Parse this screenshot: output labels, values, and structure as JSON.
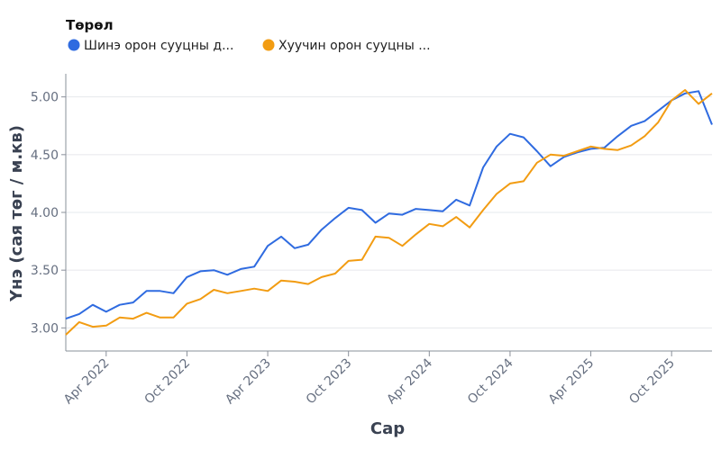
{
  "chart_data": {
    "type": "line",
    "legend": {
      "title": "Төрөл",
      "position": "top-left"
    },
    "xlabel": "Сар",
    "ylabel": "Үнэ (сая төг / м.кв)",
    "x_ticks": [
      "Apr 2022",
      "Oct 2022",
      "Apr 2023",
      "Oct 2023",
      "Apr 2024",
      "Oct 2024",
      "Apr 2025",
      "Oct 2025"
    ],
    "y_ticks": [
      "3.00",
      "3.50",
      "4.00",
      "4.50",
      "5.00"
    ],
    "ylim": [
      2.8,
      5.2
    ],
    "grid": true,
    "x": [
      "2022-01",
      "2022-02",
      "2022-03",
      "2022-04",
      "2022-05",
      "2022-06",
      "2022-07",
      "2022-08",
      "2022-09",
      "2022-10",
      "2022-11",
      "2022-12",
      "2023-01",
      "2023-02",
      "2023-03",
      "2023-04",
      "2023-05",
      "2023-06",
      "2023-07",
      "2023-08",
      "2023-09",
      "2023-10",
      "2023-11",
      "2023-12",
      "2024-01",
      "2024-02",
      "2024-03",
      "2024-04",
      "2024-05",
      "2024-06",
      "2024-07",
      "2024-08",
      "2024-09",
      "2024-10",
      "2024-11",
      "2024-12",
      "2025-01",
      "2025-02",
      "2025-03",
      "2025-04",
      "2025-05",
      "2025-06",
      "2025-07",
      "2025-08",
      "2025-09",
      "2025-10",
      "2025-11",
      "2025-12",
      "2026-01"
    ],
    "series": [
      {
        "name": "Шинэ орон сууцны д...",
        "color": "#2f6be0",
        "values": [
          3.08,
          3.12,
          3.2,
          3.14,
          3.2,
          3.22,
          3.32,
          3.32,
          3.3,
          3.44,
          3.49,
          3.5,
          3.46,
          3.51,
          3.53,
          3.71,
          3.79,
          3.69,
          3.72,
          3.85,
          3.95,
          4.04,
          4.02,
          3.91,
          3.99,
          3.98,
          4.03,
          4.02,
          4.01,
          4.11,
          4.06,
          4.39,
          4.57,
          4.68,
          4.65,
          4.53,
          4.4,
          4.48,
          4.52,
          4.55,
          4.56,
          4.66,
          4.75,
          4.79,
          4.88,
          4.97,
          5.03,
          5.05,
          4.76
        ]
      },
      {
        "name": "Хуучин орон сууцны ...",
        "color": "#f29c12",
        "values": [
          2.94,
          3.05,
          3.01,
          3.02,
          3.09,
          3.08,
          3.13,
          3.09,
          3.09,
          3.21,
          3.25,
          3.33,
          3.3,
          3.32,
          3.34,
          3.32,
          3.41,
          3.4,
          3.38,
          3.44,
          3.47,
          3.58,
          3.59,
          3.79,
          3.78,
          3.71,
          3.81,
          3.9,
          3.88,
          3.96,
          3.87,
          4.02,
          4.16,
          4.25,
          4.27,
          4.43,
          4.5,
          4.49,
          4.53,
          4.57,
          4.55,
          4.54,
          4.58,
          4.66,
          4.78,
          4.97,
          5.06,
          4.94,
          5.03
        ]
      }
    ]
  }
}
